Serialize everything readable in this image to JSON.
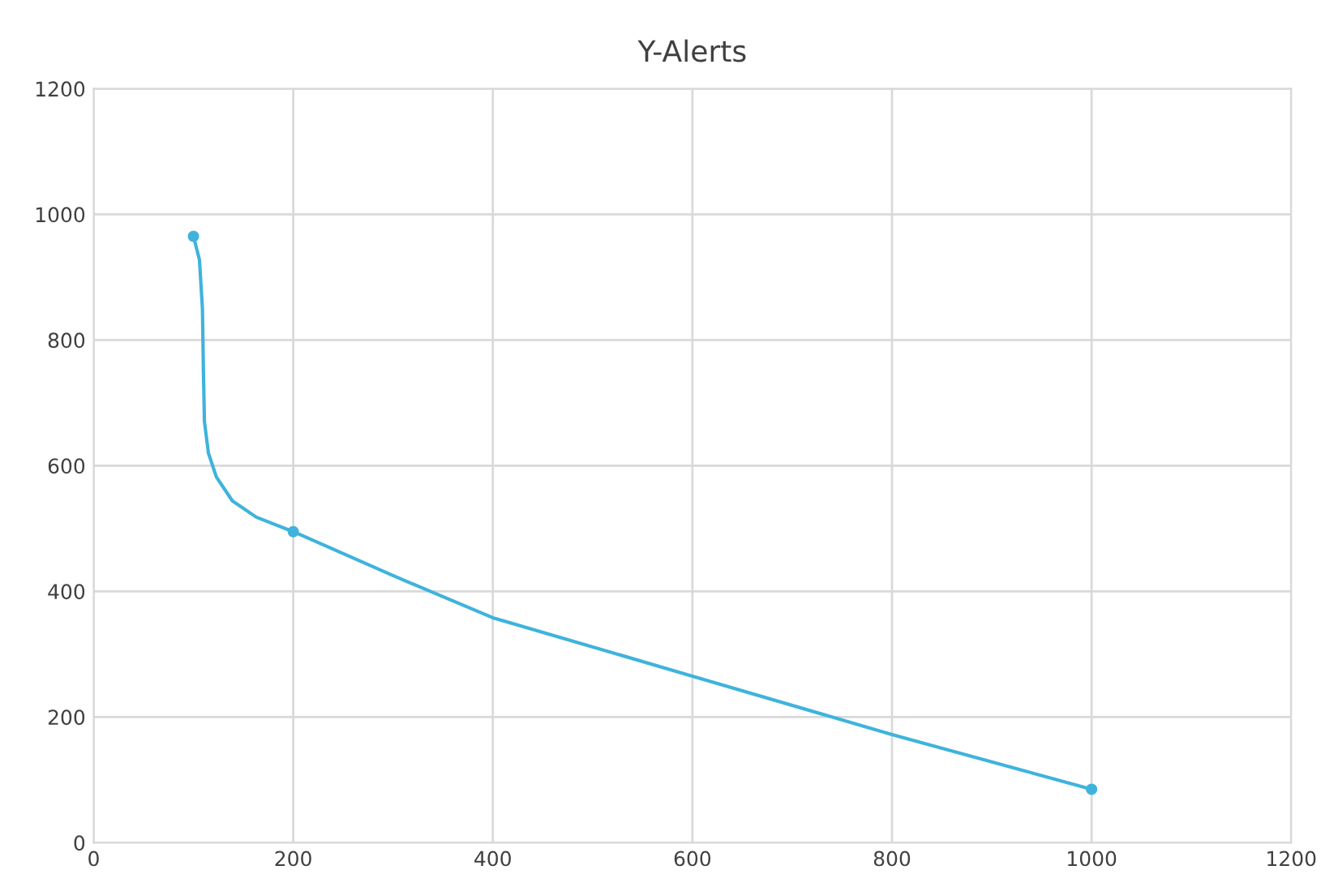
{
  "chart_data": {
    "type": "line",
    "title": "Y-Alerts",
    "series": [
      {
        "color": "#3fb3dc",
        "x": [
          100,
          106,
          109,
          110,
          111,
          115,
          123,
          139,
          163,
          200,
          300,
          400,
          600,
          800,
          1000
        ],
        "values": [
          965,
          928,
          850,
          750,
          670,
          620,
          582,
          544,
          518,
          495,
          425,
          358,
          265,
          172,
          85
        ]
      },
      {
        "type": "scatter",
        "color": "#3fb3dc",
        "marker": "circle",
        "x": [
          100,
          200,
          1000
        ],
        "values": [
          965,
          495,
          85
        ]
      }
    ],
    "xlim": [
      0,
      1200
    ],
    "xticks": [
      0,
      200,
      400,
      600,
      800,
      1000,
      1200
    ],
    "ylim": [
      0,
      1200
    ],
    "yticks": [
      0,
      200,
      400,
      600,
      800,
      1000,
      1200
    ],
    "grid": true,
    "line_style": "solid",
    "legend": false
  }
}
